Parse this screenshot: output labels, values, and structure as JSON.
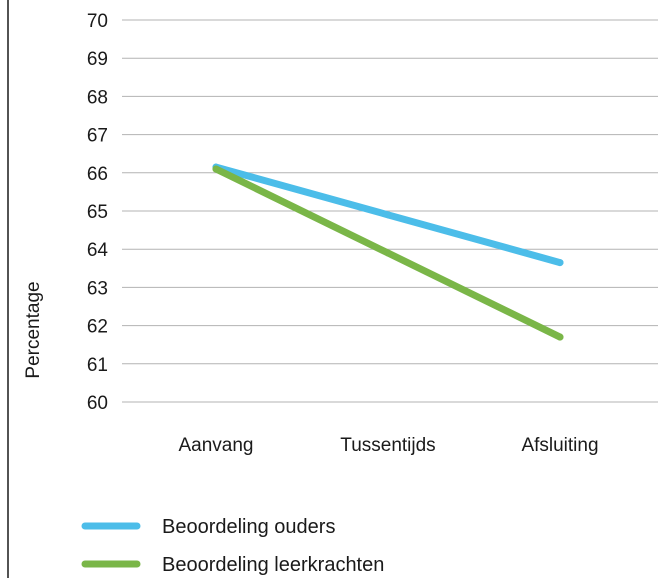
{
  "chart_data": {
    "type": "line",
    "title": "",
    "xlabel": "",
    "ylabel": "Percentage",
    "categories": [
      "Aanvang",
      "Tussentijds",
      "Afsluiting"
    ],
    "ylim": [
      60,
      70
    ],
    "yticks": [
      60,
      61,
      62,
      63,
      64,
      65,
      66,
      67,
      68,
      69,
      70
    ],
    "grid": true,
    "legend_position": "bottom",
    "series": [
      {
        "name": "Beoordeling ouders",
        "values": [
          66.15,
          64.9,
          63.65
        ],
        "color": "#4cbde9"
      },
      {
        "name": "Beoordeling leerkrachten",
        "values": [
          66.1,
          63.9,
          61.7
        ],
        "color": "#7ab648"
      }
    ]
  }
}
